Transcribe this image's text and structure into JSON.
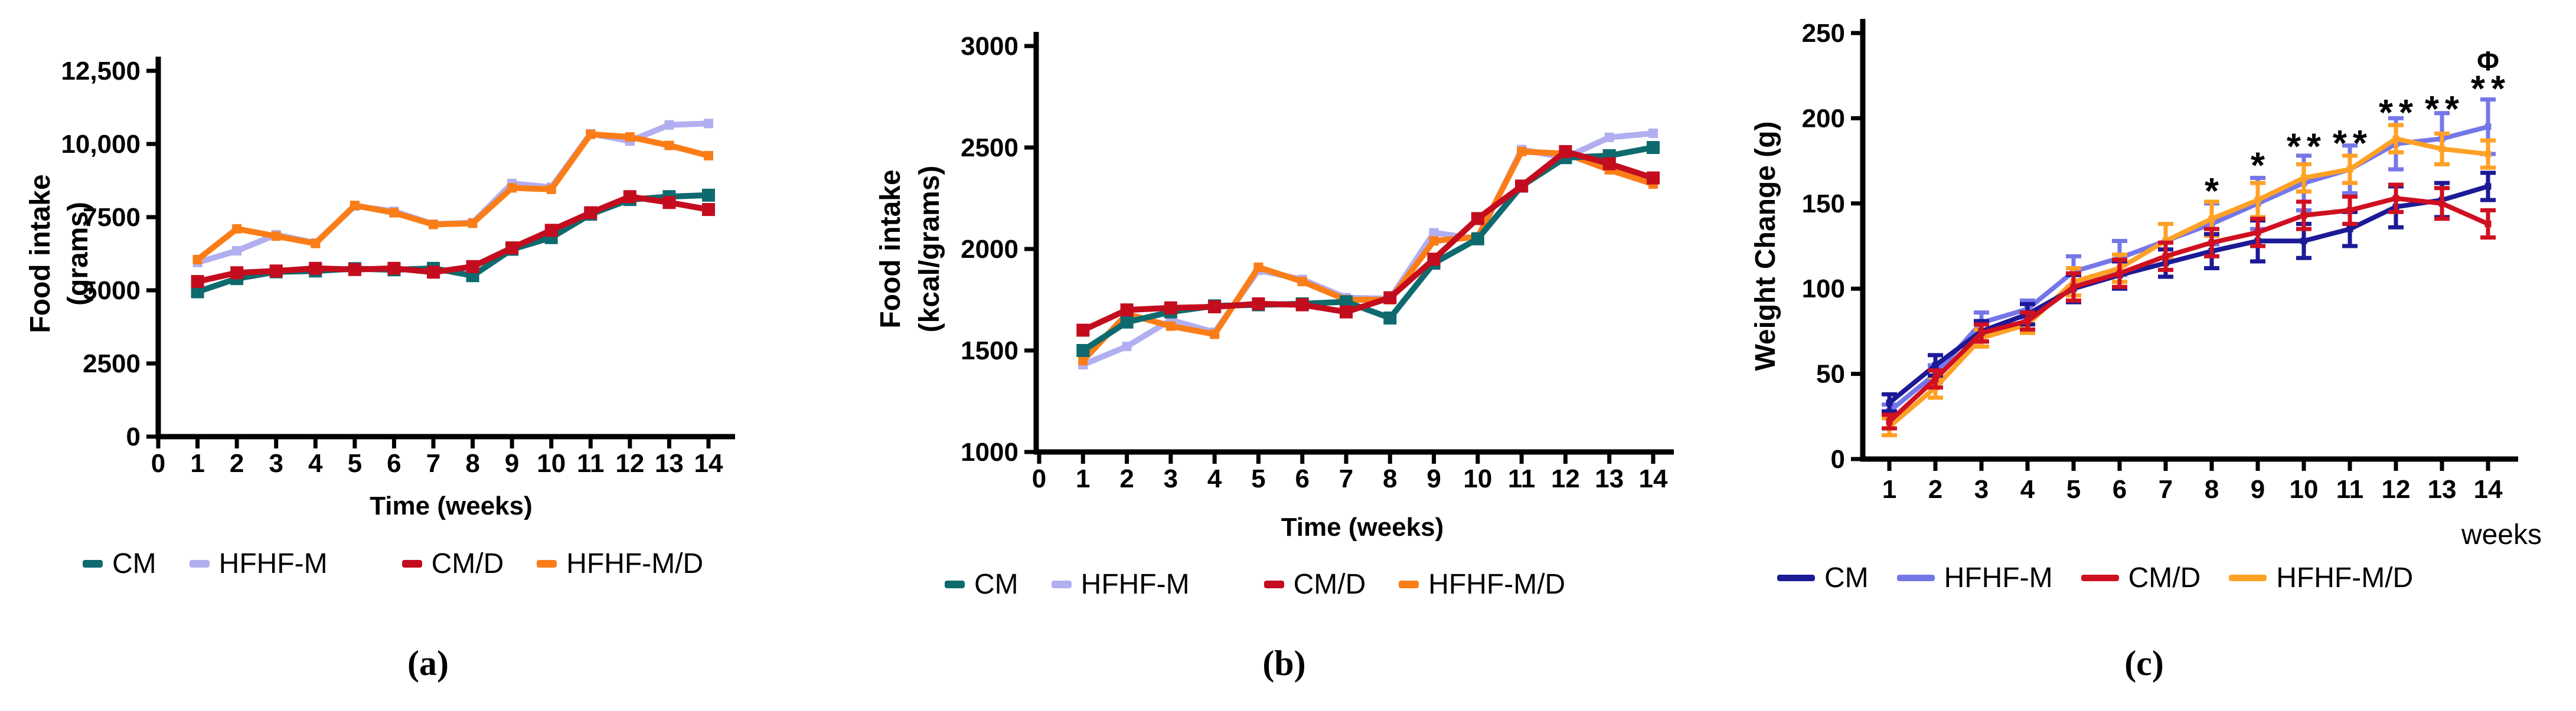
{
  "figure": {
    "background": "#ffffff",
    "panel_count": 3
  },
  "chart_data": [
    {
      "id": "a",
      "type": "line",
      "caption": "(a)",
      "xlabel": "Time (weeks)",
      "xlabel_align": "center",
      "ylabel_lines": [
        "Food intake",
        "(grams)"
      ],
      "xlim": [
        0,
        14
      ],
      "ylim": [
        0,
        12500
      ],
      "xticks": [
        {
          "v": 0,
          "label": "0"
        },
        {
          "v": 1,
          "label": "1"
        },
        {
          "v": 2,
          "label": "2"
        },
        {
          "v": 3,
          "label": "3"
        },
        {
          "v": 4,
          "label": "4"
        },
        {
          "v": 5,
          "label": "5"
        },
        {
          "v": 6,
          "label": "6"
        },
        {
          "v": 7,
          "label": "7"
        },
        {
          "v": 8,
          "label": "8"
        },
        {
          "v": 9,
          "label": "9"
        },
        {
          "v": 10,
          "label": "10"
        },
        {
          "v": 11,
          "label": "11"
        },
        {
          "v": 12,
          "label": "12"
        },
        {
          "v": 13,
          "label": "13"
        },
        {
          "v": 14,
          "label": "14"
        }
      ],
      "yticks": [
        {
          "v": 0,
          "label": "0"
        },
        {
          "v": 2500,
          "label": "2500"
        },
        {
          "v": 5000,
          "label": "5000"
        },
        {
          "v": 7500,
          "label": "7500"
        },
        {
          "v": 10000,
          "label": "10,000"
        },
        {
          "v": 12500,
          "label": "12,500"
        }
      ],
      "x": [
        1,
        2,
        3,
        4,
        5,
        6,
        7,
        8,
        9,
        10,
        11,
        12,
        13,
        14
      ],
      "series": [
        {
          "name": "CM",
          "color": "#0e6a6e",
          "values": [
            4950,
            5400,
            5630,
            5660,
            5740,
            5700,
            5750,
            5500,
            6400,
            6800,
            7600,
            8100,
            8200,
            8250
          ]
        },
        {
          "name": "HFHF-M",
          "color": "#b1aff0",
          "values": [
            5950,
            6350,
            6900,
            6620,
            7880,
            7700,
            7260,
            7310,
            8650,
            8520,
            10350,
            10100,
            10650,
            10700
          ]
        },
        {
          "name": "CM/D",
          "color": "#c30d1e",
          "values": [
            5300,
            5600,
            5660,
            5750,
            5710,
            5750,
            5620,
            5810,
            6450,
            7050,
            7650,
            8200,
            8000,
            7760
          ]
        },
        {
          "name": "HFHF-M/D",
          "color": "#fb7d17",
          "values": [
            6050,
            7100,
            6850,
            6600,
            7900,
            7650,
            7250,
            7290,
            8500,
            8450,
            10330,
            10240,
            9950,
            9600
          ]
        }
      ]
    },
    {
      "id": "b",
      "type": "line",
      "caption": "(b)",
      "xlabel": "Time (weeks)",
      "xlabel_align": "center",
      "ylabel_lines": [
        "Food intake",
        "(kcal/grams)"
      ],
      "xlim": [
        0,
        14
      ],
      "ylim": [
        1000,
        3000
      ],
      "xticks": [
        {
          "v": 0,
          "label": "0"
        },
        {
          "v": 1,
          "label": "1"
        },
        {
          "v": 2,
          "label": "2"
        },
        {
          "v": 3,
          "label": "3"
        },
        {
          "v": 4,
          "label": "4"
        },
        {
          "v": 5,
          "label": "5"
        },
        {
          "v": 6,
          "label": "6"
        },
        {
          "v": 7,
          "label": "7"
        },
        {
          "v": 8,
          "label": "8"
        },
        {
          "v": 9,
          "label": "9"
        },
        {
          "v": 10,
          "label": "10"
        },
        {
          "v": 11,
          "label": "11"
        },
        {
          "v": 12,
          "label": "12"
        },
        {
          "v": 13,
          "label": "13"
        },
        {
          "v": 14,
          "label": "14"
        }
      ],
      "yticks": [
        {
          "v": 1000,
          "label": "1000"
        },
        {
          "v": 1500,
          "label": "1500"
        },
        {
          "v": 2000,
          "label": "2000"
        },
        {
          "v": 2500,
          "label": "2500"
        },
        {
          "v": 3000,
          "label": "3000"
        }
      ],
      "x": [
        1,
        2,
        3,
        4,
        5,
        6,
        7,
        8,
        9,
        10,
        11,
        12,
        13,
        14
      ],
      "series": [
        {
          "name": "CM",
          "color": "#0e6a6e",
          "values": [
            1500,
            1640,
            1690,
            1720,
            1725,
            1730,
            1740,
            1660,
            1930,
            2050,
            2310,
            2450,
            2460,
            2500
          ]
        },
        {
          "name": "HFHF-M",
          "color": "#b1aff0",
          "values": [
            1430,
            1520,
            1650,
            1590,
            1895,
            1850,
            1760,
            1755,
            2080,
            2050,
            2490,
            2450,
            2550,
            2570
          ]
        },
        {
          "name": "CM/D",
          "color": "#c30d1e",
          "values": [
            1600,
            1700,
            1710,
            1715,
            1730,
            1725,
            1690,
            1760,
            1950,
            2150,
            2310,
            2480,
            2420,
            2350
          ]
        },
        {
          "name": "HFHF-M/D",
          "color": "#fb7d17",
          "values": [
            1450,
            1680,
            1620,
            1580,
            1910,
            1840,
            1750,
            1750,
            2040,
            2060,
            2480,
            2470,
            2390,
            2320
          ]
        }
      ]
    },
    {
      "id": "c",
      "type": "line",
      "caption": "(c)",
      "xlabel": "weeks",
      "xlabel_align": "right",
      "ylabel_lines": [
        "Weight Change (g)"
      ],
      "xlim": [
        1,
        14
      ],
      "ylim": [
        0,
        250
      ],
      "xticks": [
        {
          "v": 1,
          "label": "1"
        },
        {
          "v": 2,
          "label": "2"
        },
        {
          "v": 3,
          "label": "3"
        },
        {
          "v": 4,
          "label": "4"
        },
        {
          "v": 5,
          "label": "5"
        },
        {
          "v": 6,
          "label": "6"
        },
        {
          "v": 7,
          "label": "7"
        },
        {
          "v": 8,
          "label": "8"
        },
        {
          "v": 9,
          "label": "9"
        },
        {
          "v": 10,
          "label": "10"
        },
        {
          "v": 11,
          "label": "11"
        },
        {
          "v": 12,
          "label": "12"
        },
        {
          "v": 13,
          "label": "13"
        },
        {
          "v": 14,
          "label": "14"
        }
      ],
      "yticks": [
        {
          "v": 0,
          "label": "0"
        },
        {
          "v": 50,
          "label": "50"
        },
        {
          "v": 100,
          "label": "100"
        },
        {
          "v": 150,
          "label": "150"
        },
        {
          "v": 200,
          "label": "200"
        },
        {
          "v": 250,
          "label": "250"
        }
      ],
      "x": [
        1,
        2,
        3,
        4,
        5,
        6,
        7,
        8,
        9,
        10,
        11,
        12,
        13,
        14
      ],
      "series": [
        {
          "name": "CM",
          "color": "#1c1a96",
          "values": [
            33,
            55,
            75,
            85,
            100,
            108,
            115,
            122,
            128,
            128,
            135,
            148,
            152,
            160
          ],
          "error": [
            5,
            6,
            6,
            6,
            8,
            8,
            8,
            10,
            12,
            10,
            10,
            12,
            10,
            8
          ]
        },
        {
          "name": "HFHF-M",
          "color": "#7577e8",
          "values": [
            28,
            50,
            80,
            88,
            110,
            118,
            128,
            138,
            150,
            162,
            170,
            185,
            188,
            195
          ],
          "error": [
            4,
            5,
            6,
            5,
            9,
            10,
            10,
            12,
            15,
            16,
            14,
            15,
            15,
            16
          ]
        },
        {
          "name": "CM/D",
          "color": "#cf1021",
          "values": [
            22,
            47,
            74,
            81,
            101,
            109,
            119,
            127,
            133,
            143,
            146,
            153,
            150,
            138
          ],
          "error": [
            4,
            5,
            5,
            5,
            8,
            8,
            8,
            8,
            8,
            8,
            8,
            8,
            9,
            8
          ]
        },
        {
          "name": "HFHF-M/D",
          "color": "#ffa125",
          "values": [
            19,
            42,
            71,
            79,
            104,
            112,
            128,
            141,
            152,
            165,
            170,
            188,
            182,
            179
          ],
          "error": [
            5,
            6,
            5,
            5,
            8,
            8,
            10,
            10,
            10,
            8,
            8,
            8,
            9,
            8
          ]
        }
      ],
      "annotations": [
        {
          "week": 8,
          "y": 150,
          "symbols": [
            {
              "glyph": "*",
              "color": "#cf1021"
            }
          ]
        },
        {
          "week": 9,
          "y": 165,
          "symbols": [
            {
              "glyph": "*",
              "color": "#cf1021"
            }
          ]
        },
        {
          "week": 10,
          "y": 176,
          "symbols": [
            {
              "glyph": "*",
              "color": "#cf1021"
            },
            {
              "glyph": "*",
              "color": "#1c1a96"
            }
          ]
        },
        {
          "week": 11,
          "y": 178,
          "symbols": [
            {
              "glyph": "*",
              "color": "#cf1021"
            },
            {
              "glyph": "*",
              "color": "#1c1a96"
            }
          ]
        },
        {
          "week": 12,
          "y": 196,
          "symbols": [
            {
              "glyph": "*",
              "color": "#cf1021"
            },
            {
              "glyph": "*",
              "color": "#1c1a96"
            }
          ]
        },
        {
          "week": 13,
          "y": 198,
          "symbols": [
            {
              "glyph": "*",
              "color": "#cf1021"
            },
            {
              "glyph": "*",
              "color": "#1c1a96"
            }
          ]
        },
        {
          "week": 14,
          "y": 210,
          "symbols": [
            {
              "glyph": "*",
              "color": "#cf1021"
            },
            {
              "glyph": "*",
              "color": "#1c1a96"
            }
          ]
        },
        {
          "week": 14,
          "y": 228,
          "symbols": [
            {
              "glyph": "Φ",
              "color": "#1c1a96"
            }
          ]
        }
      ]
    }
  ]
}
